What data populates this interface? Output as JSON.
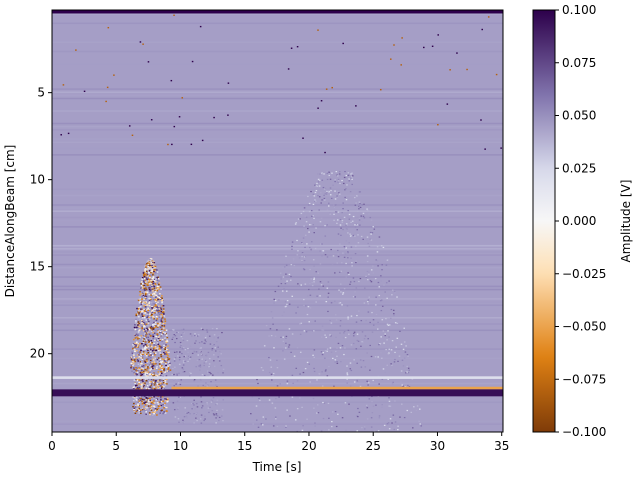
{
  "chart_data": {
    "type": "heatmap",
    "xlabel": "Time [s]",
    "ylabel": "DistanceAlongBeam [cm]",
    "xlim": [
      0,
      35.1
    ],
    "ylim": [
      24.5,
      0.25
    ],
    "y_inverted": true,
    "x_ticks": [
      0,
      5,
      10,
      15,
      20,
      25,
      30,
      35
    ],
    "x_tick_labels": [
      "0",
      "5",
      "10",
      "15",
      "20",
      "25",
      "30",
      "35"
    ],
    "y_ticks": [
      5,
      10,
      15,
      20
    ],
    "y_tick_labels": [
      "5",
      "10",
      "15",
      "20"
    ],
    "colorbar": {
      "label": "Amplitude [V]",
      "colormap": "PuOr",
      "vmin": -0.1,
      "vmax": 0.1,
      "ticks": [
        0.1,
        0.075,
        0.05,
        0.025,
        0.0,
        -0.025,
        -0.05,
        -0.075,
        -0.1
      ],
      "tick_labels": [
        "0.100",
        "0.075",
        "0.050",
        "0.025",
        "0.000",
        "−0.025",
        "−0.050",
        "−0.075",
        "−0.100"
      ],
      "colors": {
        "top": "#2d004b",
        "upper": "#8073ac",
        "mid_upper": "#d8daeb",
        "center": "#f7f7f7",
        "mid_lower": "#fee0b6",
        "lower": "#e08214",
        "bottom": "#7f3b08"
      }
    },
    "background_amplitude": 0.045,
    "features": [
      {
        "kind": "horizontal_band",
        "y_start": 0.25,
        "y_end": 0.45,
        "amplitude": 0.1
      },
      {
        "kind": "horizontal_band",
        "y_start": 21.3,
        "y_end": 21.45,
        "amplitude": 0.02
      },
      {
        "kind": "horizontal_band",
        "y_start": 21.9,
        "y_end": 22.05,
        "amplitude": -0.05,
        "x_start": 9.3,
        "x_end": 35.1
      },
      {
        "kind": "horizontal_band",
        "y_start": 22.05,
        "y_end": 22.45,
        "amplitude": 0.095
      },
      {
        "kind": "noise_plume",
        "x_center": 7.6,
        "x_halfwidth": 1.7,
        "y_top": 14.5,
        "y_bottom": 23.5,
        "amplitude_range": [
          -0.1,
          0.1
        ]
      },
      {
        "kind": "faint_plume",
        "x_center": 22.0,
        "x_halfwidth": 7.0,
        "y_top": 9.5,
        "y_bottom": 24.5,
        "amplitude_range": [
          0.02,
          0.07
        ]
      }
    ]
  }
}
